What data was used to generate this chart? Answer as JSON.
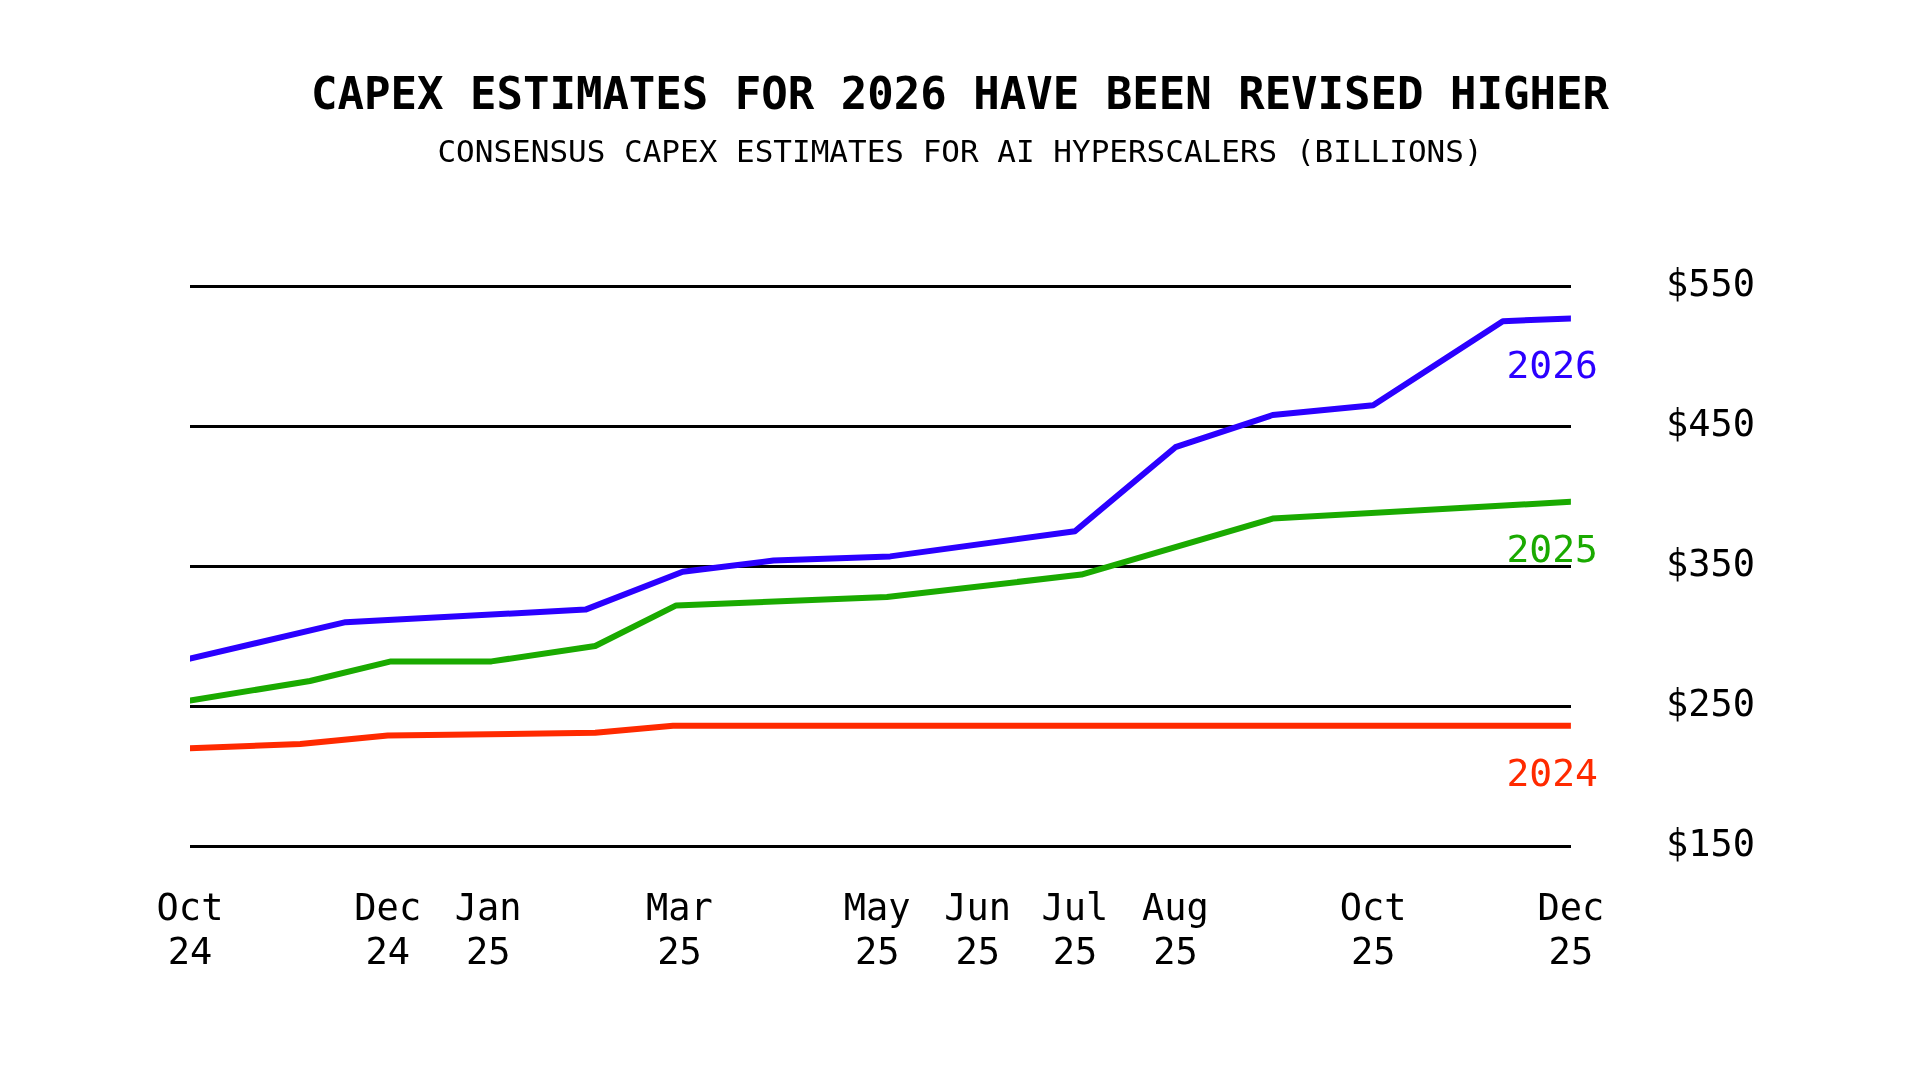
{
  "chart_data": {
    "type": "line",
    "title": "CAPEX ESTIMATES FOR 2026 HAVE BEEN REVISED HIGHER",
    "subtitle": "CONSENSUS CAPEX ESTIMATES FOR AI HYPERSCALERS (BILLIONS)",
    "series": [
      {
        "name": "2026",
        "color": "#2b00ff",
        "x": [
          "2024-10-01",
          "2024-11-18",
          "2025-01-31",
          "2025-03-02",
          "2025-03-30",
          "2025-05-05",
          "2025-07-01",
          "2025-08-01",
          "2025-08-31",
          "2025-10-01",
          "2025-11-10",
          "2025-12-01"
        ],
        "values": [
          284,
          310,
          319,
          346,
          354,
          357,
          375,
          435,
          458,
          465,
          525,
          527
        ]
      },
      {
        "name": "2025",
        "color": "#1aaa00",
        "x": [
          "2024-10-01",
          "2024-11-07",
          "2024-12-02",
          "2025-01-02",
          "2025-02-03",
          "2025-02-28",
          "2025-05-04",
          "2025-07-03",
          "2025-08-31",
          "2025-12-01"
        ],
        "values": [
          254,
          268,
          282,
          282,
          293,
          322,
          328,
          344,
          384,
          396
        ]
      },
      {
        "name": "2024",
        "color": "#ff2a00",
        "x": [
          "2024-10-01",
          "2024-11-04",
          "2024-12-01",
          "2025-02-03",
          "2025-02-27",
          "2025-12-01"
        ],
        "values": [
          220,
          223,
          229,
          231,
          236,
          236
        ]
      }
    ],
    "xlim": [
      "2024-10-01",
      "2025-12-01"
    ],
    "xticks": [
      {
        "value": "2024-10-01",
        "label": "Oct\n24"
      },
      {
        "value": "2024-12-01",
        "label": "Dec\n24"
      },
      {
        "value": "2025-01-01",
        "label": "Jan\n25"
      },
      {
        "value": "2025-03-01",
        "label": "Mar\n25"
      },
      {
        "value": "2025-05-01",
        "label": "May\n25"
      },
      {
        "value": "2025-06-01",
        "label": "Jun\n25"
      },
      {
        "value": "2025-07-01",
        "label": "Jul\n25"
      },
      {
        "value": "2025-08-01",
        "label": "Aug\n25"
      },
      {
        "value": "2025-10-01",
        "label": "Oct\n25"
      },
      {
        "value": "2025-12-01",
        "label": "Dec\n25"
      }
    ],
    "ylim": [
      150,
      550
    ],
    "yticks": [
      {
        "value": 150,
        "label": "$150"
      },
      {
        "value": 250,
        "label": "$250"
      },
      {
        "value": 350,
        "label": "$350"
      },
      {
        "value": 450,
        "label": "$450"
      },
      {
        "value": 550,
        "label": "$550"
      }
    ],
    "grid": "y",
    "legend": false,
    "marker": "none",
    "line_style": "solid"
  }
}
